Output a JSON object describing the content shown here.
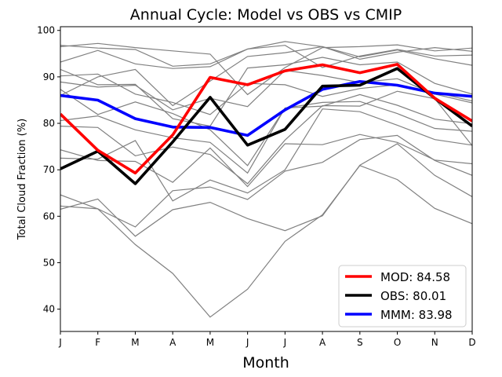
{
  "chart_data": {
    "type": "line",
    "title": "Annual Cycle: Model vs OBS vs CMIP",
    "xlabel": "Month",
    "ylabel": "Total Cloud Fraction (%)",
    "categories": [
      "J",
      "F",
      "M",
      "A",
      "M",
      "J",
      "J",
      "A",
      "S",
      "O",
      "N",
      "D"
    ],
    "ylim": [
      35.2,
      100.8
    ],
    "yticks": [
      40,
      50,
      60,
      70,
      80,
      90,
      100
    ],
    "grid": false,
    "legend_location": "lower-right",
    "series": [
      {
        "name": "MOD",
        "label": "MOD: 84.58",
        "color": "#ff0000",
        "values": [
          82.0,
          74.2,
          69.3,
          77.5,
          89.9,
          88.3,
          91.3,
          92.6,
          90.9,
          92.7,
          85.4,
          80.5
        ]
      },
      {
        "name": "OBS",
        "label": "OBS: 80.01",
        "color": "#000000",
        "values": [
          70.2,
          74.0,
          67.0,
          76.0,
          85.6,
          75.3,
          78.7,
          88.0,
          88.2,
          91.8,
          85.4,
          79.4
        ]
      },
      {
        "name": "MMM",
        "label": "MMM: 83.98",
        "color": "#0000ff",
        "values": [
          86.0,
          85.0,
          81.0,
          79.2,
          79.1,
          77.4,
          82.9,
          87.3,
          89.0,
          88.2,
          86.5,
          85.8
        ]
      }
    ],
    "cmip_color": "#808080",
    "cmip_models": [
      [
        96.5,
        97.2,
        96.3,
        95.6,
        94.9,
        86.2,
        92.0,
        96.3,
        96.5,
        96.9,
        95.6,
        96.2
      ],
      [
        96.8,
        96.2,
        95.9,
        92.3,
        92.8,
        96.0,
        97.6,
        96.5,
        93.8,
        95.3,
        96.3,
        95.5
      ],
      [
        93.2,
        95.7,
        92.8,
        91.8,
        92.2,
        96.0,
        96.8,
        92.0,
        94.5,
        95.9,
        94.5,
        94.7
      ],
      [
        86.0,
        90.0,
        91.6,
        83.8,
        89.1,
        94.4,
        95.2,
        96.5,
        94.3,
        95.8,
        93.9,
        92.5
      ],
      [
        91.6,
        88.3,
        88.4,
        81.0,
        79.4,
        91.9,
        92.6,
        94.2,
        92.6,
        93.2,
        88.6,
        86.3
      ],
      [
        88.9,
        87.8,
        88.2,
        82.9,
        85.4,
        83.6,
        91.4,
        90.3,
        88.8,
        89.6,
        86.3,
        84.4
      ],
      [
        90.2,
        90.6,
        86.3,
        84.5,
        81.9,
        88.6,
        88.3,
        85.8,
        87.5,
        88.3,
        86.7,
        84.8
      ],
      [
        87.3,
        81.9,
        84.6,
        82.1,
        78.6,
        70.9,
        83.3,
        84.5,
        84.7,
        82.1,
        78.9,
        78.3
      ],
      [
        80.6,
        81.6,
        78.6,
        76.9,
        75.9,
        69.3,
        83.3,
        83.7,
        86.2,
        83.9,
        80.9,
        79.9
      ],
      [
        79.4,
        79.1,
        73.0,
        74.9,
        73.3,
        67.0,
        76.4,
        83.8,
        83.7,
        86.9,
        85.3,
        75.2
      ],
      [
        74.3,
        72.0,
        71.8,
        67.3,
        74.7,
        66.4,
        75.6,
        75.4,
        77.6,
        75.9,
        72.1,
        71.3
      ],
      [
        72.5,
        72.3,
        76.3,
        63.3,
        67.8,
        65.0,
        70.0,
        83.1,
        82.5,
        79.6,
        76.5,
        75.3
      ],
      [
        62.2,
        61.6,
        57.7,
        65.5,
        66.3,
        63.6,
        69.7,
        71.6,
        76.5,
        77.4,
        72.0,
        68.8
      ],
      [
        61.5,
        63.7,
        55.7,
        61.4,
        63.0,
        59.5,
        56.9,
        60.1,
        71.0,
        75.6,
        68.8,
        64.2
      ],
      [
        64.6,
        61.6,
        53.9,
        47.7,
        38.3,
        44.3,
        54.6,
        60.3,
        70.9,
        67.9,
        61.7,
        58.4
      ]
    ]
  }
}
